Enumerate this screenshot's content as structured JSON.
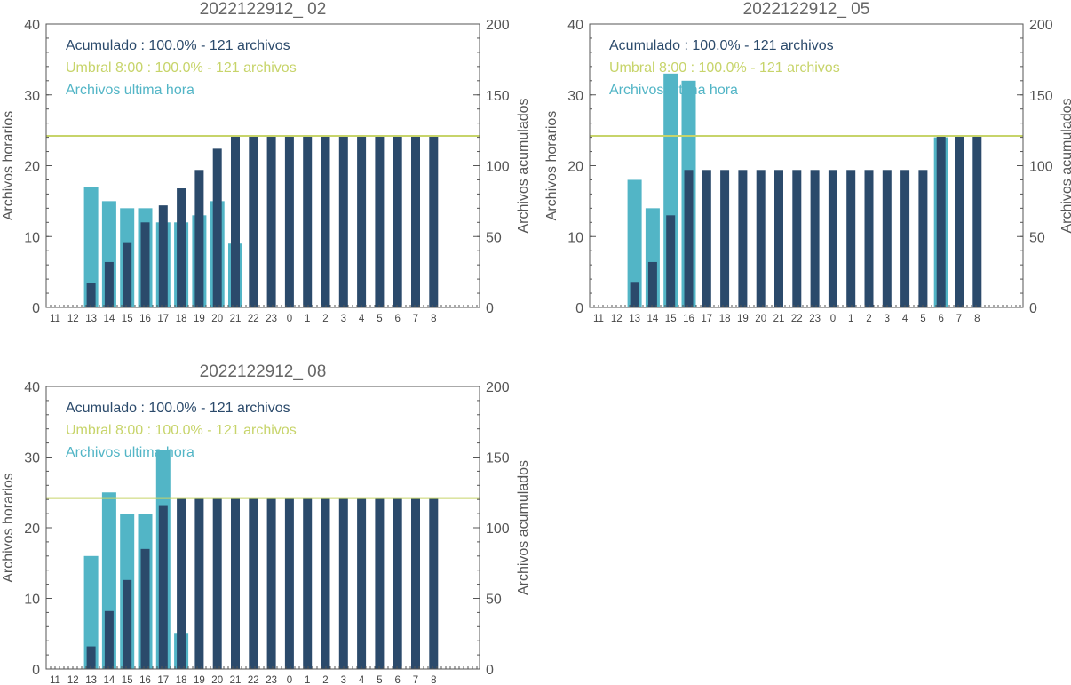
{
  "colors": {
    "acumulado": "#2b4a6b",
    "horario": "#52b5c6",
    "umbral": "#c7d46a",
    "axis": "#555555"
  },
  "chart_data": [
    {
      "type": "bar",
      "title": "2022122912_ 02",
      "ylabel_left": "Archivos horarios",
      "ylabel_right": "Archivos acumulados",
      "ylim_left": [
        0,
        40
      ],
      "ylim_right": [
        0,
        200
      ],
      "yticks_left": [
        "0",
        "10",
        "20",
        "30",
        "40"
      ],
      "yticks_right": [
        "0",
        "50",
        "100",
        "150",
        "200"
      ],
      "categories": [
        "11",
        "12",
        "13",
        "14",
        "15",
        "16",
        "17",
        "18",
        "19",
        "20",
        "21",
        "22",
        "23",
        "0",
        "1",
        "2",
        "3",
        "4",
        "5",
        "6",
        "7",
        "8"
      ],
      "legend": [
        {
          "text": "Acumulado : 100.0% - 121 archivos",
          "color": "#2b4a6b"
        },
        {
          "text": "Umbral 8:00 : 100.0% - 121 archivos",
          "color": "#c7d46a"
        },
        {
          "text": "Archivos ultima hora",
          "color": "#52b5c6"
        }
      ],
      "legend_position": "top-left",
      "threshold_right": 121,
      "series": [
        {
          "name": "Archivos ultima hora",
          "axis": "left",
          "values": [
            0,
            0,
            17,
            15,
            14,
            14,
            12,
            12,
            13,
            15,
            9,
            0,
            0,
            0,
            0,
            0,
            0,
            0,
            0,
            0,
            0,
            0
          ]
        },
        {
          "name": "Acumulado",
          "axis": "right",
          "values": [
            0,
            0,
            17,
            32,
            46,
            60,
            72,
            84,
            97,
            112,
            121,
            121,
            121,
            121,
            121,
            121,
            121,
            121,
            121,
            121,
            121,
            121
          ]
        }
      ]
    },
    {
      "type": "bar",
      "title": "2022122912_ 05",
      "ylabel_left": "Archivos horarios",
      "ylabel_right": "Archivos acumulados",
      "ylim_left": [
        0,
        40
      ],
      "ylim_right": [
        0,
        200
      ],
      "yticks_left": [
        "0",
        "10",
        "20",
        "30",
        "40"
      ],
      "yticks_right": [
        "0",
        "50",
        "100",
        "150",
        "200"
      ],
      "categories": [
        "11",
        "12",
        "13",
        "14",
        "15",
        "16",
        "17",
        "18",
        "19",
        "20",
        "21",
        "22",
        "23",
        "0",
        "1",
        "2",
        "3",
        "4",
        "5",
        "6",
        "7",
        "8"
      ],
      "legend": [
        {
          "text": "Acumulado : 100.0% - 121 archivos",
          "color": "#2b4a6b"
        },
        {
          "text": "Umbral 8:00 : 100.0% - 121 archivos",
          "color": "#c7d46a"
        },
        {
          "text": "Archivos ultima hora",
          "color": "#52b5c6"
        }
      ],
      "legend_position": "top-left",
      "threshold_right": 121,
      "series": [
        {
          "name": "Archivos ultima hora",
          "axis": "left",
          "values": [
            0,
            0,
            18,
            14,
            33,
            32,
            0,
            0,
            0,
            0,
            0,
            0,
            0,
            0,
            0,
            0,
            0,
            0,
            0,
            24,
            0,
            0
          ]
        },
        {
          "name": "Acumulado",
          "axis": "right",
          "values": [
            0,
            0,
            18,
            32,
            65,
            97,
            97,
            97,
            97,
            97,
            97,
            97,
            97,
            97,
            97,
            97,
            97,
            97,
            97,
            121,
            121,
            121
          ]
        }
      ]
    },
    {
      "type": "bar",
      "title": "2022122912_ 08",
      "ylabel_left": "Archivos horarios",
      "ylabel_right": "Archivos acumulados",
      "ylim_left": [
        0,
        40
      ],
      "ylim_right": [
        0,
        200
      ],
      "yticks_left": [
        "0",
        "10",
        "20",
        "30",
        "40"
      ],
      "yticks_right": [
        "0",
        "50",
        "100",
        "150",
        "200"
      ],
      "categories": [
        "11",
        "12",
        "13",
        "14",
        "15",
        "16",
        "17",
        "18",
        "19",
        "20",
        "21",
        "22",
        "23",
        "0",
        "1",
        "2",
        "3",
        "4",
        "5",
        "6",
        "7",
        "8"
      ],
      "legend": [
        {
          "text": "Acumulado : 100.0% - 121 archivos",
          "color": "#2b4a6b"
        },
        {
          "text": "Umbral 8:00 : 100.0% - 121 archivos",
          "color": "#c7d46a"
        },
        {
          "text": "Archivos ultima hora",
          "color": "#52b5c6"
        }
      ],
      "legend_position": "top-left",
      "threshold_right": 121,
      "series": [
        {
          "name": "Archivos ultima hora",
          "axis": "left",
          "values": [
            0,
            0,
            16,
            25,
            22,
            22,
            31,
            5,
            0,
            0,
            0,
            0,
            0,
            0,
            0,
            0,
            0,
            0,
            0,
            0,
            0,
            0
          ]
        },
        {
          "name": "Acumulado",
          "axis": "right",
          "values": [
            0,
            0,
            16,
            41,
            63,
            85,
            116,
            121,
            121,
            121,
            121,
            121,
            121,
            121,
            121,
            121,
            121,
            121,
            121,
            121,
            121,
            121
          ]
        }
      ]
    }
  ]
}
